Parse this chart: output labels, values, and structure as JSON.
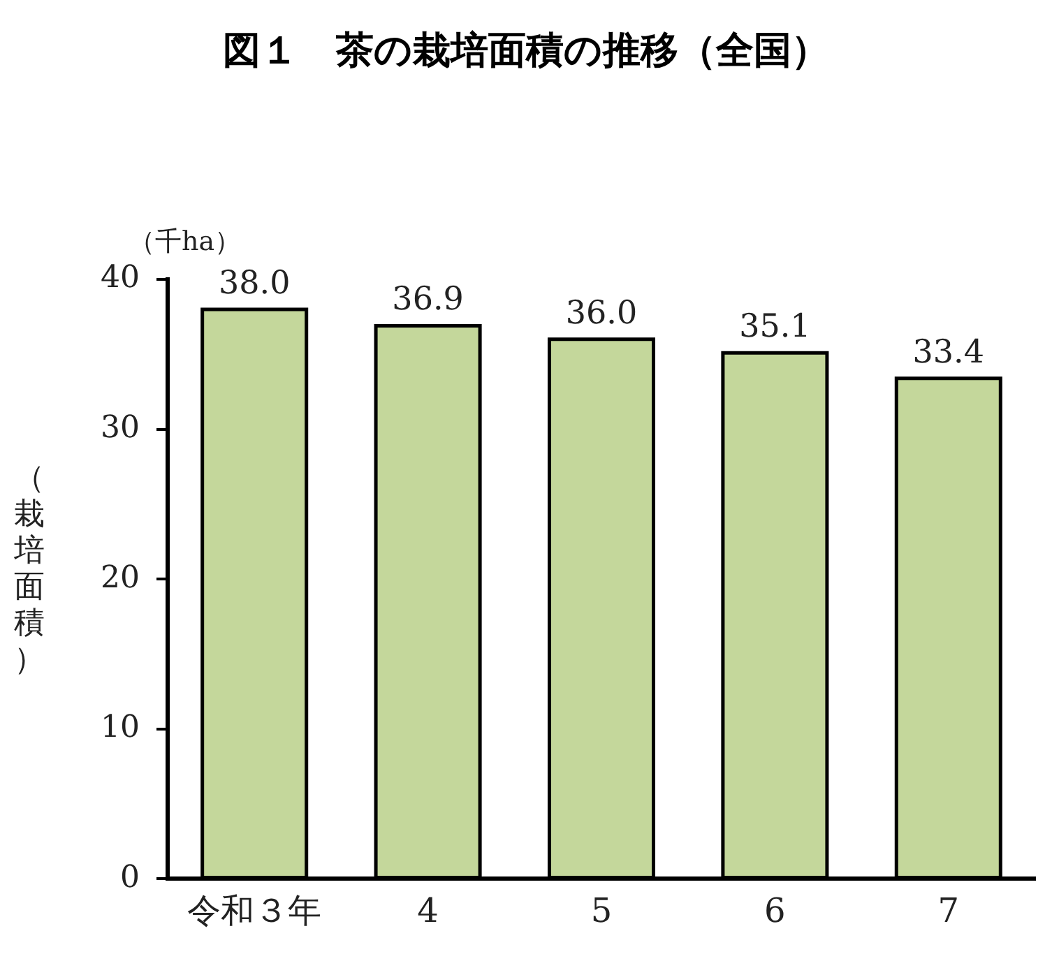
{
  "chart_data": {
    "type": "bar",
    "title": "図１　茶の栽培面積の推移（全国）",
    "ylabel": "（栽培面積）",
    "annotations": [
      "（千ha）"
    ],
    "categories": [
      "令和３年",
      "4",
      "5",
      "6",
      "7"
    ],
    "values": [
      38.0,
      36.9,
      36.0,
      35.1,
      33.4
    ],
    "value_labels": [
      "38.0",
      "36.9",
      "36.0",
      "35.1",
      "33.4"
    ],
    "color": "#c4d79b",
    "ylim": [
      0,
      40
    ],
    "yticks": [
      0,
      10,
      20,
      30,
      40
    ],
    "grid": false,
    "legend": false
  }
}
